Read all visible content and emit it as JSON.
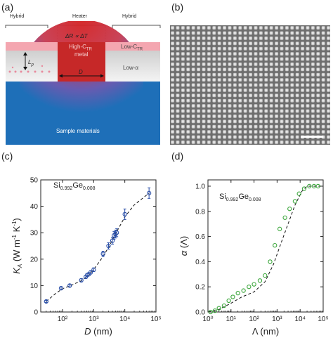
{
  "panels": {
    "a": {
      "letter": "(a)",
      "label_hybrid_left": "Hybrid",
      "label_heater": "Heater",
      "label_hybrid_right": "Hybrid",
      "label_delta": "ΔR ∝ ΔT",
      "label_high_ctr_1": "High-C",
      "label_high_ctr_sub": "TR",
      "label_high_ctr_2": "metal",
      "label_D": "D",
      "label_Lp": "L",
      "label_Lp_sub": "p",
      "label_low_ctr": "Low-C",
      "label_low_ctr_sub": "TR",
      "label_low_alpha": "Low-α",
      "label_sample": "Sample materials",
      "colors": {
        "metal_red": "#c62828",
        "pink_layer": "#f4a6b0",
        "sample_blue": "#1e6fb8"
      }
    },
    "b": {
      "letter": "(b)",
      "image_description_icon": "sem-dot-array"
    },
    "c": {
      "letter": "(c)",
      "annotation": {
        "main": "Si",
        "sub1": "0.992",
        "mid": "Ge",
        "sub2": "0.008"
      }
    },
    "d": {
      "letter": "(d)",
      "annotation": {
        "main": "Si",
        "sub1": "0.992",
        "mid": "Ge",
        "sub2": "0.008"
      }
    }
  },
  "chart_data": [
    {
      "type": "scatter",
      "panel": "c",
      "xlabel": "D (nm)",
      "ylabel": "K_A (W m⁻¹ K⁻¹)",
      "x_scale": "log",
      "xlim": [
        20,
        100000
      ],
      "ylim": [
        0,
        50
      ],
      "x_ticks": [
        "10²",
        "10³",
        "10⁴",
        "10⁵"
      ],
      "y_ticks": [
        "0",
        "10",
        "20",
        "30",
        "40",
        "50"
      ],
      "marker_color": "#2a4fa8",
      "points": [
        {
          "x": 30,
          "y": 4,
          "err": 0.4
        },
        {
          "x": 90,
          "y": 9,
          "err": 0.5
        },
        {
          "x": 170,
          "y": 10,
          "err": 0.5
        },
        {
          "x": 400,
          "y": 12,
          "err": 0.6
        },
        {
          "x": 560,
          "y": 13.3,
          "err": 0.6
        },
        {
          "x": 620,
          "y": 14,
          "err": 0.6
        },
        {
          "x": 700,
          "y": 14.3,
          "err": 0.6
        },
        {
          "x": 800,
          "y": 15,
          "err": 0.6
        },
        {
          "x": 1000,
          "y": 16,
          "err": 0.7
        },
        {
          "x": 2000,
          "y": 22,
          "err": 1
        },
        {
          "x": 3000,
          "y": 25,
          "err": 1.2
        },
        {
          "x": 4000,
          "y": 27,
          "err": 1.3
        },
        {
          "x": 4500,
          "y": 29,
          "err": 1.5
        },
        {
          "x": 5000,
          "y": 29.5,
          "err": 1.5
        },
        {
          "x": 5500,
          "y": 30,
          "err": 1.5
        },
        {
          "x": 10000,
          "y": 37,
          "err": 2
        },
        {
          "x": 60000,
          "y": 45,
          "err": 2
        }
      ],
      "fit_line": [
        {
          "x": 30,
          "y": 4
        },
        {
          "x": 60,
          "y": 7
        },
        {
          "x": 100,
          "y": 8.8
        },
        {
          "x": 200,
          "y": 10.2
        },
        {
          "x": 400,
          "y": 11.8
        },
        {
          "x": 700,
          "y": 14
        },
        {
          "x": 1000,
          "y": 16
        },
        {
          "x": 2000,
          "y": 21
        },
        {
          "x": 3000,
          "y": 24.5
        },
        {
          "x": 5000,
          "y": 29.5
        },
        {
          "x": 10000,
          "y": 36
        },
        {
          "x": 20000,
          "y": 40.5
        },
        {
          "x": 60000,
          "y": 45
        }
      ]
    },
    {
      "type": "scatter",
      "panel": "d",
      "xlabel": "Λ (nm)",
      "ylabel": "α (Λ)",
      "x_scale": "log",
      "xlim": [
        1,
        100000
      ],
      "ylim": [
        0,
        1.05
      ],
      "x_ticks": [
        "10⁰",
        "10¹",
        "10²",
        "10³",
        "10⁴",
        "10⁵"
      ],
      "y_ticks": [
        "0.0",
        "0.2",
        "0.4",
        "0.6",
        "0.8",
        "1.0"
      ],
      "marker_color": "#3aa63a",
      "points": [
        {
          "x": 1.3,
          "y": 0.0
        },
        {
          "x": 2,
          "y": 0.01
        },
        {
          "x": 3,
          "y": 0.03
        },
        {
          "x": 5,
          "y": 0.05
        },
        {
          "x": 8,
          "y": 0.09
        },
        {
          "x": 12,
          "y": 0.12
        },
        {
          "x": 20,
          "y": 0.15
        },
        {
          "x": 35,
          "y": 0.17
        },
        {
          "x": 60,
          "y": 0.2
        },
        {
          "x": 100,
          "y": 0.22
        },
        {
          "x": 180,
          "y": 0.25
        },
        {
          "x": 300,
          "y": 0.29
        },
        {
          "x": 500,
          "y": 0.4
        },
        {
          "x": 800,
          "y": 0.53
        },
        {
          "x": 1300,
          "y": 0.66
        },
        {
          "x": 2200,
          "y": 0.75
        },
        {
          "x": 3500,
          "y": 0.82
        },
        {
          "x": 6000,
          "y": 0.88
        },
        {
          "x": 9000,
          "y": 0.94
        },
        {
          "x": 15000,
          "y": 0.98
        },
        {
          "x": 25000,
          "y": 1.0
        },
        {
          "x": 40000,
          "y": 1.0
        },
        {
          "x": 60000,
          "y": 1.0
        }
      ],
      "fit_line": [
        {
          "x": 1,
          "y": 0.0
        },
        {
          "x": 3,
          "y": 0.02
        },
        {
          "x": 10,
          "y": 0.07
        },
        {
          "x": 30,
          "y": 0.12
        },
        {
          "x": 100,
          "y": 0.16
        },
        {
          "x": 300,
          "y": 0.24
        },
        {
          "x": 700,
          "y": 0.38
        },
        {
          "x": 1500,
          "y": 0.55
        },
        {
          "x": 3000,
          "y": 0.7
        },
        {
          "x": 6000,
          "y": 0.85
        },
        {
          "x": 12000,
          "y": 0.96
        },
        {
          "x": 20000,
          "y": 1.0
        },
        {
          "x": 100000,
          "y": 1.0
        }
      ]
    }
  ]
}
